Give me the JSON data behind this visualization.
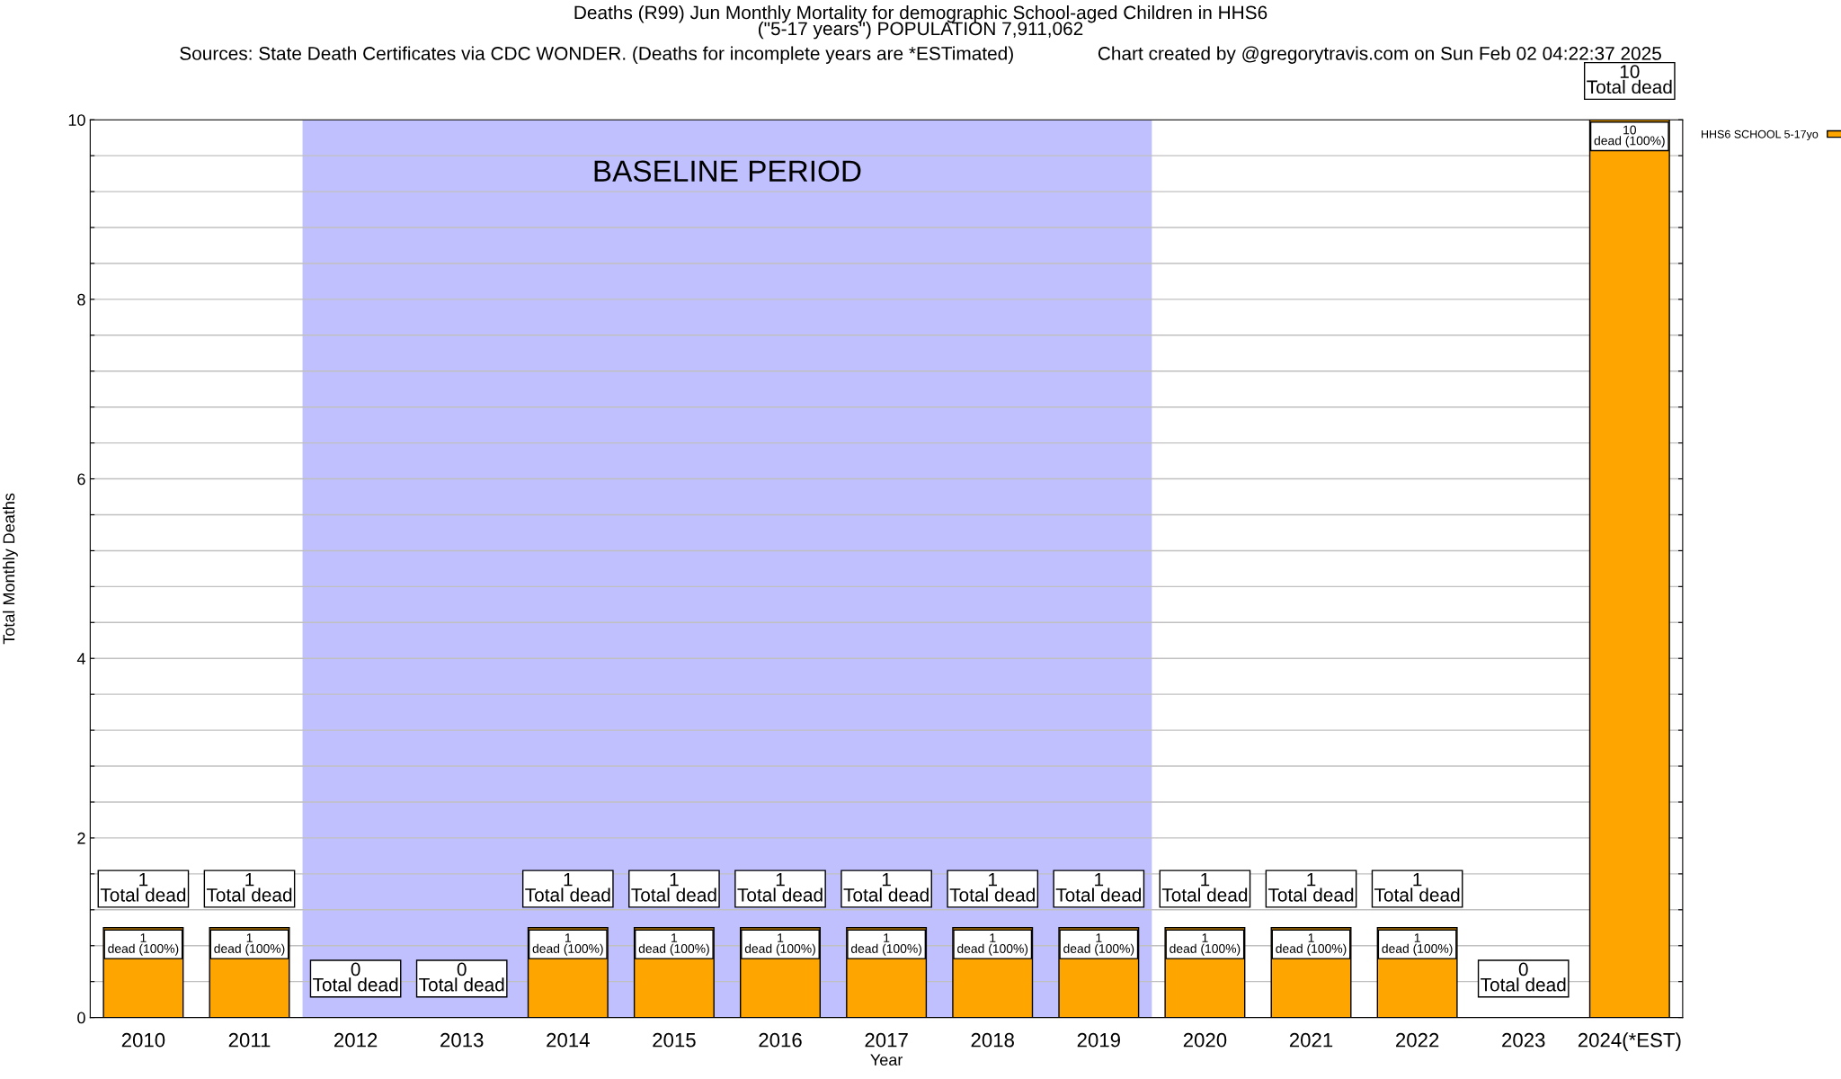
{
  "chart_data": {
    "type": "bar",
    "title": "Deaths (R99) Jun Monthly Mortality for demographic School-aged Children in HHS6\n(\"5-17 years\") POPULATION 7,911,062",
    "subtitle": "Sources: State Death Certificates via CDC WONDER. (Deaths for incomplete years are *ESTimated)                Chart created by @gregorytravis.com on Sun Feb 02 04:22:37 2025",
    "xlabel": "Year",
    "ylabel": "Total Monthly Deaths",
    "categories": [
      "2010",
      "2011",
      "2012",
      "2013",
      "2014",
      "2015",
      "2016",
      "2017",
      "2018",
      "2019",
      "2020",
      "2021",
      "2022",
      "2023",
      "2024(*EST)"
    ],
    "series": [
      {
        "name": "HHS6 SCHOOL 5-17yo",
        "color": "#ffa500",
        "values": [
          1,
          1,
          0,
          0,
          1,
          1,
          1,
          1,
          1,
          1,
          1,
          1,
          1,
          0,
          10
        ],
        "value_labels": [
          "1\ndead (100%)",
          "1\ndead (100%)",
          null,
          null,
          "1\ndead (100%)",
          "1\ndead (100%)",
          "1\ndead (100%)",
          "1\ndead (100%)",
          "1\ndead (100%)",
          "1\ndead (100%)",
          "1\ndead (100%)",
          "1\ndead (100%)",
          "1\ndead (100%)",
          null,
          "10\ndead (100%)"
        ]
      }
    ],
    "totals": [
      "1\nTotal dead",
      "1\nTotal dead",
      "0\nTotal dead",
      "0\nTotal dead",
      "1\nTotal dead",
      "1\nTotal dead",
      "1\nTotal dead",
      "1\nTotal dead",
      "1\nTotal dead",
      "1\nTotal dead",
      "1\nTotal dead",
      "1\nTotal dead",
      "1\nTotal dead",
      "0\nTotal dead",
      "10\nTotal dead"
    ],
    "bands": [
      {
        "axis": "x",
        "from": "2012",
        "to": "2019",
        "label": "BASELINE PERIOD",
        "color": "#c0c0ff"
      }
    ],
    "ylim": [
      0,
      10
    ],
    "yticks": [
      0,
      {
        "value": 0.4,
        "label": null
      },
      {
        "value": 0.8,
        "label": null
      },
      {
        "value": 1.2,
        "label": null
      },
      {
        "value": 1.6,
        "label": null
      },
      2,
      {
        "value": 2.4,
        "label": null
      },
      {
        "value": 2.8,
        "label": null
      },
      {
        "value": 3.2,
        "label": null
      },
      {
        "value": 3.6,
        "label": null
      },
      4,
      {
        "value": 4.4,
        "label": null
      },
      {
        "value": 4.8,
        "label": null
      },
      {
        "value": 5.2,
        "label": null
      },
      {
        "value": 5.6,
        "label": null
      },
      6,
      {
        "value": 6.4,
        "label": null
      },
      {
        "value": 6.8,
        "label": null
      },
      {
        "value": 7.2,
        "label": null
      },
      {
        "value": 7.6,
        "label": null
      },
      8,
      {
        "value": 8.4,
        "label": null
      },
      {
        "value": 8.8,
        "label": null
      },
      {
        "value": 9.2,
        "label": null
      },
      {
        "value": 9.6,
        "label": null
      },
      10
    ],
    "grid": "y",
    "legend": "top right"
  }
}
